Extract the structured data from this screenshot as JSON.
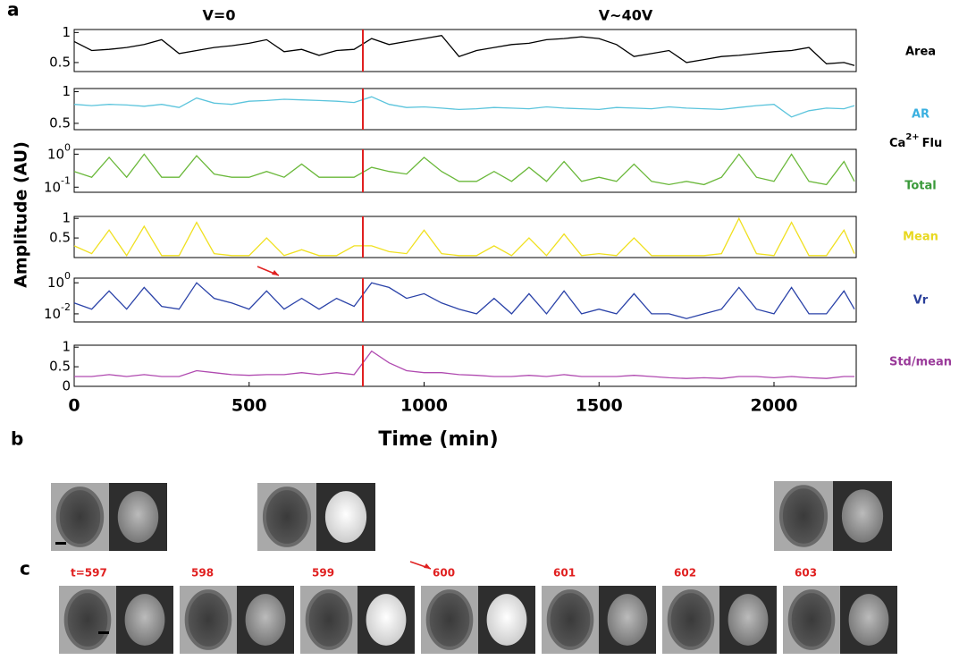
{
  "panel_labels": [
    "a",
    "b",
    "c"
  ],
  "figure": {
    "ylabel": "Amplitude (AU)",
    "conditions": [
      "V=0",
      "V~40V"
    ],
    "stimulus_time": 825,
    "group_label": {
      "base": "Ca",
      "sup": "2+",
      "rest": "Flu"
    }
  },
  "chart_data": [
    {
      "type": "line",
      "label": "Area",
      "color": "#000000",
      "label_color": "#000000",
      "log": false,
      "xlim": [
        0,
        2235
      ],
      "ylim": [
        0.35,
        1.05
      ],
      "yticks": [
        0.5,
        1
      ],
      "x": [
        0,
        50,
        100,
        150,
        200,
        250,
        300,
        350,
        400,
        450,
        500,
        550,
        600,
        650,
        700,
        750,
        800,
        850,
        900,
        950,
        1000,
        1050,
        1100,
        1150,
        1200,
        1250,
        1300,
        1350,
        1400,
        1450,
        1500,
        1550,
        1600,
        1650,
        1700,
        1750,
        1800,
        1850,
        1900,
        1950,
        2000,
        2050,
        2100,
        2150,
        2200,
        2230
      ],
      "values": [
        0.85,
        0.7,
        0.72,
        0.75,
        0.8,
        0.88,
        0.65,
        0.7,
        0.75,
        0.78,
        0.82,
        0.88,
        0.68,
        0.72,
        0.62,
        0.7,
        0.72,
        0.9,
        0.8,
        0.85,
        0.9,
        0.95,
        0.6,
        0.7,
        0.75,
        0.8,
        0.82,
        0.88,
        0.9,
        0.93,
        0.9,
        0.8,
        0.6,
        0.65,
        0.7,
        0.5,
        0.55,
        0.6,
        0.62,
        0.65,
        0.68,
        0.7,
        0.75,
        0.48,
        0.5,
        0.45
      ]
    },
    {
      "type": "line",
      "label": "AR",
      "color": "#5bc4dc",
      "label_color": "#3ab0e0",
      "log": false,
      "xlim": [
        0,
        2235
      ],
      "ylim": [
        0.4,
        1.05
      ],
      "yticks": [
        0.5,
        1
      ],
      "x": [
        0,
        50,
        100,
        150,
        200,
        250,
        300,
        350,
        400,
        450,
        500,
        550,
        600,
        650,
        700,
        750,
        800,
        850,
        900,
        950,
        1000,
        1050,
        1100,
        1150,
        1200,
        1250,
        1300,
        1350,
        1400,
        1450,
        1500,
        1550,
        1600,
        1650,
        1700,
        1750,
        1800,
        1850,
        1900,
        1950,
        2000,
        2050,
        2100,
        2150,
        2200,
        2230
      ],
      "values": [
        0.8,
        0.78,
        0.8,
        0.79,
        0.77,
        0.8,
        0.75,
        0.9,
        0.82,
        0.8,
        0.85,
        0.86,
        0.88,
        0.87,
        0.86,
        0.85,
        0.83,
        0.92,
        0.8,
        0.75,
        0.76,
        0.74,
        0.72,
        0.73,
        0.75,
        0.74,
        0.73,
        0.76,
        0.74,
        0.73,
        0.72,
        0.75,
        0.74,
        0.73,
        0.76,
        0.74,
        0.73,
        0.72,
        0.75,
        0.78,
        0.8,
        0.6,
        0.7,
        0.74,
        0.73,
        0.78
      ]
    },
    {
      "type": "line",
      "label": "Total",
      "color": "#6ab83a",
      "label_color": "#3a9a3a",
      "log": true,
      "xlim": [
        0,
        2235
      ],
      "ylim": [
        0.07,
        1.4
      ],
      "yticks": [
        {
          "value": 1,
          "label": "10",
          "exponent": "0"
        },
        {
          "value": 0.1,
          "label": "10",
          "exponent": "-1"
        }
      ],
      "x": [
        0,
        50,
        100,
        150,
        200,
        250,
        300,
        350,
        400,
        450,
        500,
        550,
        600,
        650,
        700,
        750,
        800,
        850,
        900,
        950,
        1000,
        1050,
        1100,
        1150,
        1200,
        1250,
        1300,
        1350,
        1400,
        1450,
        1500,
        1550,
        1600,
        1650,
        1700,
        1750,
        1800,
        1850,
        1900,
        1950,
        2000,
        2050,
        2100,
        2150,
        2200,
        2230
      ],
      "values": [
        0.3,
        0.2,
        0.8,
        0.2,
        1,
        0.2,
        0.2,
        0.9,
        0.25,
        0.2,
        0.2,
        0.3,
        0.2,
        0.5,
        0.2,
        0.2,
        0.2,
        0.4,
        0.3,
        0.25,
        0.8,
        0.3,
        0.15,
        0.15,
        0.3,
        0.15,
        0.4,
        0.15,
        0.6,
        0.15,
        0.2,
        0.15,
        0.5,
        0.15,
        0.12,
        0.15,
        0.12,
        0.2,
        1,
        0.2,
        0.15,
        1,
        0.15,
        0.12,
        0.6,
        0.15
      ]
    },
    {
      "type": "line",
      "label": "Mean",
      "color": "#f0e020",
      "label_color": "#e8d820",
      "log": false,
      "xlim": [
        0,
        2235
      ],
      "ylim": [
        0,
        1.05
      ],
      "yticks": [
        0.5,
        1
      ],
      "x": [
        0,
        50,
        100,
        150,
        200,
        250,
        300,
        350,
        400,
        450,
        500,
        550,
        600,
        650,
        700,
        750,
        800,
        850,
        900,
        950,
        1000,
        1050,
        1100,
        1150,
        1200,
        1250,
        1300,
        1350,
        1400,
        1450,
        1500,
        1550,
        1600,
        1650,
        1700,
        1750,
        1800,
        1850,
        1900,
        1950,
        2000,
        2050,
        2100,
        2150,
        2200,
        2230
      ],
      "values": [
        0.3,
        0.1,
        0.7,
        0.05,
        0.8,
        0.05,
        0.05,
        0.9,
        0.1,
        0.05,
        0.05,
        0.5,
        0.05,
        0.2,
        0.05,
        0.05,
        0.3,
        0.3,
        0.15,
        0.1,
        0.7,
        0.1,
        0.05,
        0.05,
        0.3,
        0.05,
        0.5,
        0.05,
        0.6,
        0.05,
        0.1,
        0.05,
        0.5,
        0.05,
        0.05,
        0.05,
        0.05,
        0.1,
        1,
        0.1,
        0.05,
        0.9,
        0.05,
        0.05,
        0.7,
        0.1
      ]
    },
    {
      "type": "line",
      "label": "Vr",
      "color": "#2a42a8",
      "label_color": "#2a3f9a",
      "log": true,
      "xlim": [
        0,
        2235
      ],
      "ylim": [
        0.003,
        2
      ],
      "yticks": [
        {
          "value": 1,
          "label": "10",
          "exponent": "0"
        },
        {
          "value": 0.01,
          "label": "10",
          "exponent": "-2"
        }
      ],
      "x": [
        0,
        50,
        100,
        150,
        200,
        250,
        300,
        350,
        400,
        450,
        500,
        550,
        600,
        650,
        700,
        750,
        800,
        850,
        900,
        950,
        1000,
        1050,
        1100,
        1150,
        1200,
        1250,
        1300,
        1350,
        1400,
        1450,
        1500,
        1550,
        1600,
        1650,
        1700,
        1750,
        1800,
        1850,
        1900,
        1950,
        2000,
        2050,
        2100,
        2150,
        2200,
        2230
      ],
      "values": [
        0.05,
        0.02,
        0.3,
        0.02,
        0.5,
        0.03,
        0.02,
        1,
        0.1,
        0.05,
        0.02,
        0.3,
        0.02,
        0.1,
        0.02,
        0.1,
        0.03,
        1,
        0.5,
        0.1,
        0.2,
        0.05,
        0.02,
        0.01,
        0.1,
        0.01,
        0.2,
        0.01,
        0.3,
        0.01,
        0.02,
        0.01,
        0.2,
        0.01,
        0.01,
        0.005,
        0.01,
        0.02,
        0.5,
        0.02,
        0.01,
        0.5,
        0.01,
        0.01,
        0.3,
        0.02
      ]
    },
    {
      "type": "line",
      "label": "Std/mean",
      "color": "#b04ab0",
      "label_color": "#9a3a9a",
      "log": false,
      "xlim": [
        0,
        2235
      ],
      "ylim": [
        0,
        1.05
      ],
      "yticks": [
        0,
        0.5,
        1
      ],
      "xticks": [
        0,
        500,
        1000,
        1500,
        2000
      ],
      "xlabel": "Time (min)",
      "x": [
        0,
        50,
        100,
        150,
        200,
        250,
        300,
        350,
        400,
        450,
        500,
        550,
        600,
        650,
        700,
        750,
        800,
        850,
        900,
        950,
        1000,
        1050,
        1100,
        1150,
        1200,
        1250,
        1300,
        1350,
        1400,
        1450,
        1500,
        1550,
        1600,
        1650,
        1700,
        1750,
        1800,
        1850,
        1900,
        1950,
        2000,
        2050,
        2100,
        2150,
        2200,
        2230
      ],
      "values": [
        0.25,
        0.25,
        0.3,
        0.25,
        0.3,
        0.25,
        0.25,
        0.4,
        0.35,
        0.3,
        0.28,
        0.3,
        0.3,
        0.35,
        0.3,
        0.35,
        0.3,
        0.9,
        0.6,
        0.4,
        0.35,
        0.35,
        0.3,
        0.28,
        0.25,
        0.25,
        0.28,
        0.25,
        0.3,
        0.25,
        0.25,
        0.25,
        0.28,
        0.25,
        0.22,
        0.2,
        0.22,
        0.2,
        0.25,
        0.25,
        0.22,
        0.25,
        0.22,
        0.2,
        0.25,
        0.25
      ]
    }
  ],
  "panel_c": {
    "time_labels": [
      "t=597",
      "598",
      "599",
      "600",
      "601",
      "602",
      "603"
    ]
  }
}
